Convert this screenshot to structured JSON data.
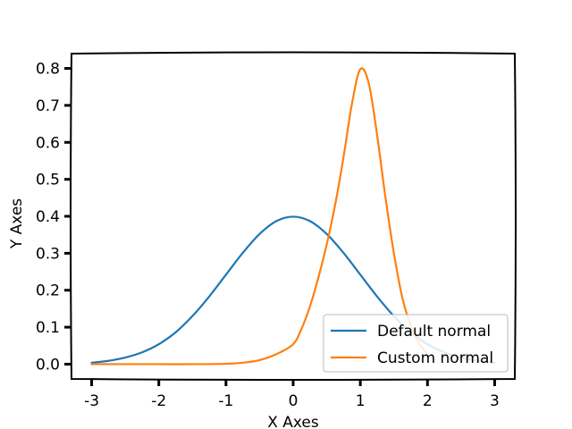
{
  "chart_data": {
    "type": "line",
    "xlabel": "X Axes",
    "ylabel": "Y Axes",
    "xlim": [
      -3.3,
      3.3
    ],
    "ylim": [
      -0.04,
      0.84
    ],
    "x_ticks": [
      -3,
      -2,
      -1,
      0,
      1,
      2,
      3
    ],
    "x_tick_labels": [
      "-3",
      "-2",
      "-1",
      "0",
      "1",
      "2",
      "3"
    ],
    "y_ticks": [
      0.0,
      0.1,
      0.2,
      0.3,
      0.4,
      0.5,
      0.6,
      0.7,
      0.8
    ],
    "y_tick_labels": [
      "0.0",
      "0.1",
      "0.2",
      "0.3",
      "0.4",
      "0.5",
      "0.6",
      "0.7",
      "0.8"
    ],
    "grid": false,
    "legend_position": "lower-right",
    "series": [
      {
        "name": "Default normal",
        "color": "#1f77b4",
        "x": [
          -3.0,
          -2.75,
          -2.5,
          -2.25,
          -2.0,
          -1.75,
          -1.5,
          -1.25,
          -1.0,
          -0.75,
          -0.5,
          -0.25,
          0.0,
          0.25,
          0.5,
          0.75,
          1.0,
          1.25,
          1.5,
          1.75,
          2.0,
          2.25,
          2.5,
          2.75,
          3.0
        ],
        "y": [
          0.004,
          0.009,
          0.018,
          0.032,
          0.054,
          0.086,
          0.13,
          0.183,
          0.242,
          0.301,
          0.352,
          0.387,
          0.399,
          0.387,
          0.352,
          0.301,
          0.242,
          0.183,
          0.13,
          0.086,
          0.054,
          0.032,
          0.018,
          0.009,
          0.004
        ]
      },
      {
        "name": "Custom normal",
        "color": "#ff7f0e",
        "x": [
          -3.0,
          -2.5,
          -2.0,
          -1.5,
          -1.0,
          -0.75,
          -0.5,
          -0.25,
          0.0,
          0.125,
          0.25,
          0.375,
          0.5,
          0.625,
          0.75,
          0.875,
          1.0,
          1.125,
          1.25,
          1.375,
          1.5,
          1.625,
          1.75,
          1.875,
          2.0
        ],
        "y": [
          0.0,
          0.0,
          0.0,
          0.0,
          0.001,
          0.004,
          0.011,
          0.027,
          0.054,
          0.096,
          0.156,
          0.234,
          0.324,
          0.431,
          0.56,
          0.704,
          0.798,
          0.76,
          0.62,
          0.45,
          0.3,
          0.18,
          0.105,
          0.056,
          0.027
        ]
      }
    ]
  }
}
